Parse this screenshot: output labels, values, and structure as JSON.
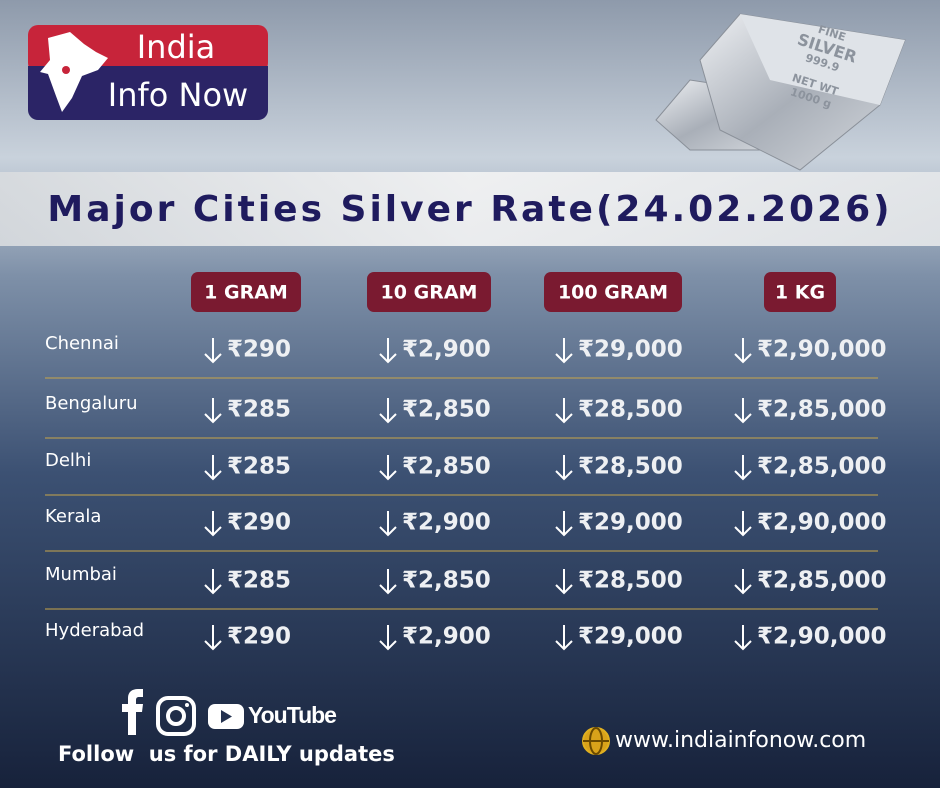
{
  "logo": {
    "line1": "India",
    "line2": "Info Now"
  },
  "silver_bar": {
    "line1": "FINE",
    "line2": "SILVER",
    "line3": "999.9",
    "line4": "NET WT",
    "line5": "1000 g"
  },
  "title": "Major Cities Silver Rate(24.02.2026)",
  "table": {
    "headers": [
      "1 GRAM",
      "10 GRAM",
      "100 GRAM",
      "1 KG"
    ],
    "rows": [
      [
        "Chennai",
        "₹290",
        "₹2,900",
        "₹29,000",
        "₹2,90,000"
      ],
      [
        "Bengaluru",
        "₹285",
        "₹2,850",
        "₹28,500",
        "₹2,85,000"
      ],
      [
        "Delhi",
        "₹285",
        "₹2,850",
        "₹28,500",
        "₹2,85,000"
      ],
      [
        "Kerala",
        "₹290",
        "₹2,900",
        "₹29,000",
        "₹2,90,000"
      ],
      [
        "Mumbai",
        "₹285",
        "₹2,850",
        "₹28,500",
        "₹2,85,000"
      ],
      [
        "Hyderabad",
        "₹290",
        "₹2,900",
        "₹29,000",
        "₹2,90,000"
      ]
    ]
  },
  "footer": {
    "youtube": "YouTube",
    "follow": "Follow  us for DAILY updates",
    "website": "www.indiainfonow.com"
  }
}
